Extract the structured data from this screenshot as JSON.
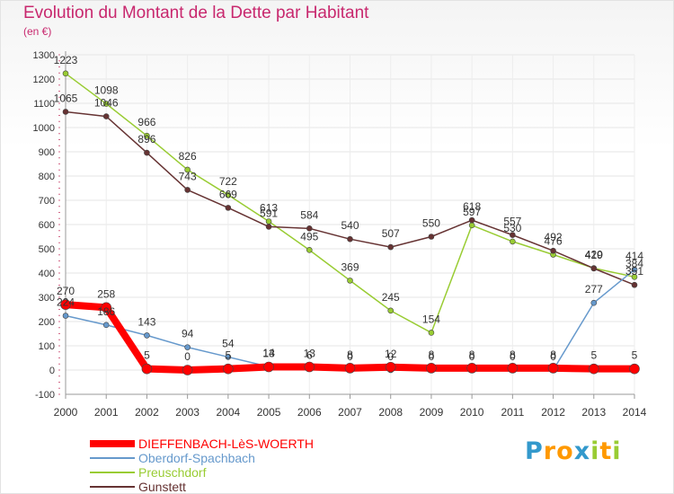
{
  "header": {
    "title": "Evolution du Montant de la Dette par Habitant",
    "unit": "(en €)"
  },
  "logo": {
    "text": "Proxiti",
    "letters": [
      {
        "ch": "P",
        "color": "#3399cc"
      },
      {
        "ch": "r",
        "color": "#ff9900"
      },
      {
        "ch": "o",
        "color": "#ff9900"
      },
      {
        "ch": "x",
        "color": "#3399cc"
      },
      {
        "ch": "i",
        "color": "#99cc33"
      },
      {
        "ch": "t",
        "color": "#ff9900"
      },
      {
        "ch": "i",
        "color": "#99cc33"
      }
    ]
  },
  "chart_data": {
    "type": "line",
    "title": "Evolution du Montant de la Dette par Habitant",
    "ylabel": "(en €)",
    "x": [
      "2000",
      "2001",
      "2002",
      "2003",
      "2004",
      "2005",
      "2006",
      "2007",
      "2008",
      "2009",
      "2010",
      "2011",
      "2012",
      "2013",
      "2014"
    ],
    "ylim": [
      -100,
      1300
    ],
    "yticks": [
      -100,
      0,
      100,
      200,
      300,
      400,
      500,
      600,
      700,
      800,
      900,
      1000,
      1100,
      1200,
      1300
    ],
    "grid": true,
    "legend": "bottom-left",
    "series": [
      {
        "name": "DIEFFENBACH-LèS-WOERTH",
        "color": "#ff0000",
        "values": [
          270,
          258,
          5,
          0,
          5,
          13,
          13,
          8,
          12,
          8,
          8,
          8,
          8,
          5,
          5
        ]
      },
      {
        "name": "Oberdorf-Spachbach",
        "color": "#6699cc",
        "values": [
          224,
          186,
          143,
          94,
          54,
          14,
          6,
          0,
          0,
          0,
          0,
          0,
          0,
          277,
          414
        ]
      },
      {
        "name": "Preuschdorf",
        "color": "#99cc33",
        "values": [
          1223,
          1098,
          966,
          826,
          722,
          613,
          495,
          369,
          245,
          154,
          597,
          530,
          476,
          420,
          384
        ]
      },
      {
        "name": "Gunstett",
        "color": "#663333",
        "values": [
          1065,
          1046,
          896,
          743,
          669,
          591,
          584,
          540,
          507,
          550,
          618,
          557,
          492,
          419,
          351
        ]
      }
    ]
  }
}
